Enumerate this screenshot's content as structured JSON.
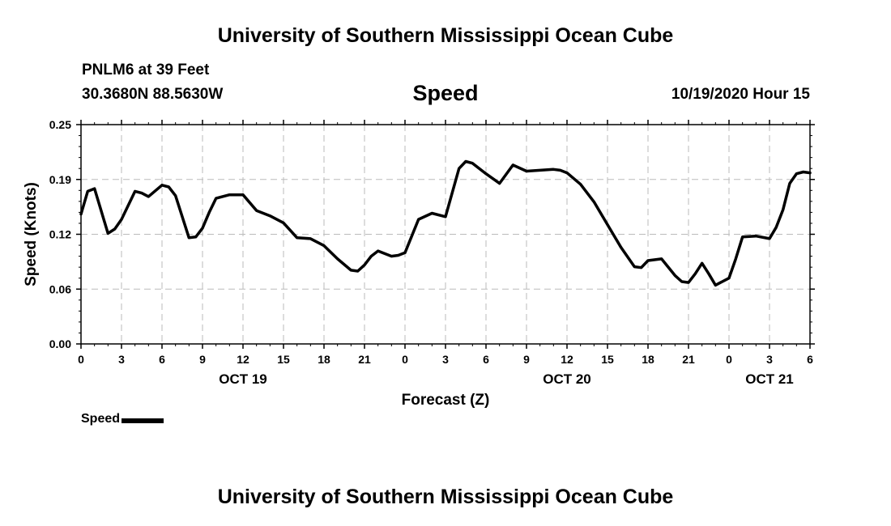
{
  "header": {
    "title": "University of Southern Mississippi Ocean Cube",
    "station": "PNLM6 at 39 Feet",
    "coords": "30.3680N 88.5630W",
    "subtitle": "Speed",
    "issued": "10/19/2020 Hour 15"
  },
  "footer": {
    "title": "University of Southern Mississippi Ocean Cube"
  },
  "legend": {
    "label": "Speed"
  },
  "chart_data": {
    "type": "line",
    "title": "Speed",
    "xlabel": "Forecast (Z)",
    "ylabel": "Speed (Knots)",
    "ylim": [
      0,
      0.25
    ],
    "xlim": [
      0,
      54
    ],
    "x_unit": "hours from OCT 19 00Z",
    "grid": true,
    "legend_position": "bottom-left",
    "y_ticks": [
      "0.00",
      "0.06",
      "0.12",
      "0.19",
      "0.25"
    ],
    "x_ticks": [
      "0",
      "3",
      "6",
      "9",
      "12",
      "15",
      "18",
      "21",
      "0",
      "3",
      "6",
      "9",
      "12",
      "15",
      "18",
      "21",
      "0",
      "3",
      "6"
    ],
    "day_labels": [
      {
        "label": "OCT 19",
        "x": 12
      },
      {
        "label": "OCT 20",
        "x": 36
      },
      {
        "label": "OCT 21",
        "x": 51
      }
    ],
    "series": [
      {
        "name": "Speed",
        "color": "#000000",
        "x": [
          0,
          0.5,
          1,
          2,
          2.5,
          3,
          4,
          4.5,
          5,
          6,
          6.5,
          7,
          8,
          8.5,
          9,
          9.5,
          10,
          11,
          12,
          13,
          14,
          15,
          16,
          17,
          18,
          19,
          20,
          20.5,
          21,
          21.5,
          22,
          23,
          23.5,
          24,
          25,
          26,
          27,
          28,
          28.5,
          29,
          30,
          31,
          32,
          33,
          34,
          35,
          35.5,
          36,
          37,
          38,
          39,
          40,
          41,
          41.5,
          42,
          43,
          44,
          44.5,
          45,
          45.5,
          46,
          46.5,
          47,
          48,
          48.5,
          49,
          50,
          51,
          51.5,
          52,
          52.5,
          53,
          53.5,
          54
        ],
        "y": [
          0.148,
          0.174,
          0.177,
          0.126,
          0.131,
          0.142,
          0.174,
          0.172,
          0.168,
          0.181,
          0.179,
          0.169,
          0.121,
          0.122,
          0.132,
          0.15,
          0.166,
          0.17,
          0.17,
          0.152,
          0.146,
          0.138,
          0.121,
          0.12,
          0.112,
          0.097,
          0.084,
          0.083,
          0.09,
          0.1,
          0.106,
          0.1,
          0.101,
          0.104,
          0.142,
          0.149,
          0.145,
          0.2,
          0.208,
          0.206,
          0.194,
          0.183,
          0.204,
          0.197,
          0.198,
          0.199,
          0.198,
          0.195,
          0.182,
          0.162,
          0.136,
          0.11,
          0.088,
          0.087,
          0.095,
          0.097,
          0.078,
          0.071,
          0.07,
          0.08,
          0.092,
          0.08,
          0.067,
          0.075,
          0.097,
          0.122,
          0.123,
          0.12,
          0.133,
          0.153,
          0.183,
          0.194,
          0.196,
          0.195
        ]
      }
    ]
  }
}
